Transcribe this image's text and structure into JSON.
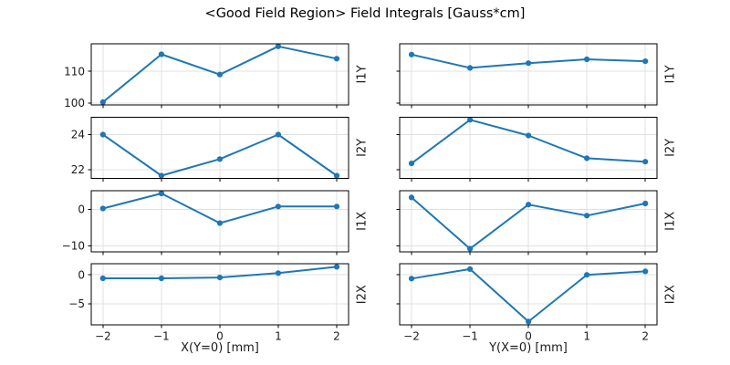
{
  "title": "<Good Field Region> Field Integrals [Gauss*cm]",
  "colors": {
    "line": "#1f77b4",
    "grid": "#e0e0e0",
    "spine": "#000000",
    "tick_text": "#1a1a1a",
    "background": "#ffffff"
  },
  "chart_data": {
    "type": "line",
    "title": "<Good Field Region> Field Integrals [Gauss*cm]",
    "layout_hint": "4 rows x 2 columns, shared x per column, shared y per row, grid on, no legend, markers on points, row labels on right side rotated 90",
    "x": [
      -2,
      -1,
      0,
      1,
      2
    ],
    "xlim": [
      -2.2,
      2.2
    ],
    "xticks": [
      -2,
      -1,
      0,
      1,
      2
    ],
    "columns": [
      {
        "xlabel": "X(Y=0) [mm]"
      },
      {
        "xlabel": "Y(X=0) [mm]"
      }
    ],
    "rows": [
      {
        "label": "I1Y",
        "ylim": [
          99.4,
          118.7
        ],
        "yticks": [
          100,
          110
        ],
        "series": [
          {
            "name": "I1Y vs X(Y=0)",
            "values": [
              100.3,
              115.4,
              109.0,
              117.9,
              114.0
            ]
          },
          {
            "name": "I1Y vs Y(X=0)",
            "values": [
              115.3,
              111.1,
              112.6,
              113.8,
              113.2
            ]
          }
        ]
      },
      {
        "label": "I2Y",
        "ylim": [
          21.5,
          25.0
        ],
        "yticks": [
          22,
          24
        ],
        "series": [
          {
            "name": "I2Y vs X(Y=0)",
            "values": [
              24.0,
              21.65,
              22.6,
              24.0,
              21.65
            ]
          },
          {
            "name": "I2Y vs Y(X=0)",
            "values": [
              22.35,
              24.85,
              23.95,
              22.65,
              22.45
            ]
          }
        ]
      },
      {
        "label": "I1X",
        "ylim": [
          -11.6,
          5.1
        ],
        "yticks": [
          -10,
          0
        ],
        "series": [
          {
            "name": "I1X vs X(Y=0)",
            "values": [
              0.2,
              4.3,
              -3.8,
              0.75,
              0.75
            ]
          },
          {
            "name": "I1X vs Y(X=0)",
            "values": [
              3.2,
              -10.8,
              1.25,
              -1.75,
              1.55
            ]
          }
        ]
      },
      {
        "label": "I2X",
        "ylim": [
          -8.7,
          1.9
        ],
        "yticks": [
          -5,
          0
        ],
        "series": [
          {
            "name": "I2X vs X(Y=0)",
            "values": [
              -0.6,
              -0.6,
              -0.45,
              0.3,
              1.4
            ]
          },
          {
            "name": "I2X vs Y(X=0)",
            "values": [
              -0.65,
              1.0,
              -8.1,
              0.0,
              0.6
            ]
          }
        ]
      }
    ]
  }
}
